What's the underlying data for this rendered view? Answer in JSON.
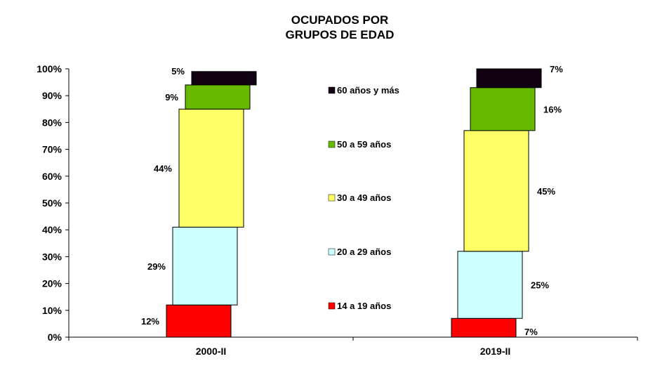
{
  "chart_data": {
    "type": "bar",
    "stacked": true,
    "title": [
      "OCUPADOS POR",
      "GRUPOS DE EDAD"
    ],
    "xlabel": "",
    "ylabel": "",
    "ylim": [
      0,
      100
    ],
    "yticks": [
      "0%",
      "10%",
      "20%",
      "30%",
      "40%",
      "50%",
      "60%",
      "70%",
      "80%",
      "90%",
      "100%"
    ],
    "categories": [
      "2000-II",
      "2019-II"
    ],
    "series": [
      {
        "name": "14 a 19 años",
        "color": "#ff0000",
        "values": [
          12,
          7
        ]
      },
      {
        "name": "20 a 29 años",
        "color": "#ccffff",
        "values": [
          29,
          25
        ]
      },
      {
        "name": "30 a 49 años",
        "color": "#ffff66",
        "values": [
          44,
          45
        ]
      },
      {
        "name": "50 a 59 años",
        "color": "#66bb00",
        "values": [
          9,
          16
        ]
      },
      {
        "name": "60 años y más",
        "color": "#110011",
        "values": [
          5,
          7
        ]
      }
    ],
    "data_labels": [
      [
        "12%",
        "29%",
        "44%",
        "9%",
        "5%"
      ],
      [
        "7%",
        "25%",
        "45%",
        "16%",
        "7%"
      ]
    ],
    "legend": "center"
  }
}
